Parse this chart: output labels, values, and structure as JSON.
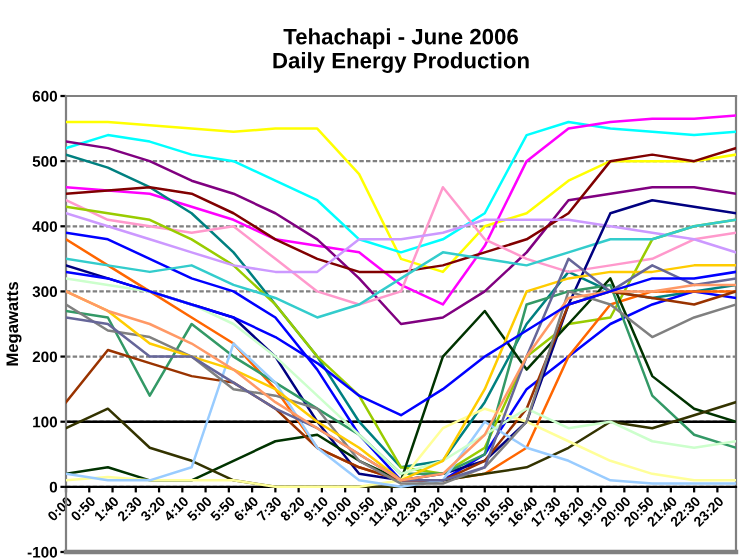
{
  "chart_data": {
    "type": "line",
    "title": "Tehachapi - June 2006\nDaily Energy Production",
    "ylabel": "Megawatts",
    "x": [
      0,
      1.5,
      3,
      4.5,
      6,
      7.5,
      9,
      10.5,
      12,
      13.5,
      15,
      16.5,
      18,
      19.5,
      21,
      22.5,
      24
    ],
    "xlim": [
      0,
      24
    ],
    "ylim": [
      -100,
      600
    ],
    "yticks": [
      -100,
      0,
      100,
      200,
      300,
      400,
      500,
      600
    ],
    "xticks": [
      {
        "value": 0,
        "label": "0:00"
      },
      {
        "value": 0.833,
        "label": "0:50"
      },
      {
        "value": 1.667,
        "label": "1:40"
      },
      {
        "value": 2.5,
        "label": "2:30"
      },
      {
        "value": 3.333,
        "label": "3:20"
      },
      {
        "value": 4.167,
        "label": "4:10"
      },
      {
        "value": 5,
        "label": "5:00"
      },
      {
        "value": 5.833,
        "label": "5:50"
      },
      {
        "value": 6.667,
        "label": "6:40"
      },
      {
        "value": 7.5,
        "label": "7:30"
      },
      {
        "value": 8.333,
        "label": "8:20"
      },
      {
        "value": 9.167,
        "label": "9:10"
      },
      {
        "value": 10,
        "label": "10:00"
      },
      {
        "value": 10.833,
        "label": "10:50"
      },
      {
        "value": 11.667,
        "label": "11:40"
      },
      {
        "value": 12.5,
        "label": "12:30"
      },
      {
        "value": 13.333,
        "label": "13:20"
      },
      {
        "value": 14.167,
        "label": "14:10"
      },
      {
        "value": 15,
        "label": "15:00"
      },
      {
        "value": 15.833,
        "label": "15:50"
      },
      {
        "value": 16.667,
        "label": "16:40"
      },
      {
        "value": 17.5,
        "label": "17:30"
      },
      {
        "value": 18.333,
        "label": "18:20"
      },
      {
        "value": 19.167,
        "label": "19:10"
      },
      {
        "value": 20,
        "label": "20:00"
      },
      {
        "value": 20.833,
        "label": "20:50"
      },
      {
        "value": 21.667,
        "label": "21:40"
      },
      {
        "value": 22.5,
        "label": "22:30"
      },
      {
        "value": 23.333,
        "label": "23:20"
      }
    ],
    "grid": "y",
    "legend": false,
    "marker": "none",
    "line_style": "solid",
    "ref_lines": [
      {
        "axis": "y",
        "value": 100,
        "color": "#000000"
      }
    ],
    "series": [
      {
        "color": "#ffff00",
        "values": [
          560,
          560,
          555,
          550,
          545,
          550,
          550,
          480,
          350,
          330,
          400,
          420,
          470,
          500,
          500,
          500,
          510
        ]
      },
      {
        "color": "#00ffff",
        "values": [
          520,
          540,
          530,
          510,
          500,
          470,
          440,
          380,
          360,
          380,
          420,
          540,
          560,
          550,
          545,
          540,
          545
        ]
      },
      {
        "color": "#ff00ff",
        "values": [
          460,
          455,
          450,
          430,
          410,
          380,
          370,
          360,
          310,
          280,
          370,
          500,
          550,
          560,
          565,
          565,
          570
        ]
      },
      {
        "color": "#800080",
        "values": [
          530,
          520,
          500,
          470,
          450,
          420,
          380,
          320,
          250,
          260,
          300,
          360,
          440,
          450,
          460,
          460,
          450
        ]
      },
      {
        "color": "#008080",
        "values": [
          510,
          490,
          460,
          420,
          360,
          280,
          200,
          100,
          30,
          40,
          130,
          250,
          330,
          300,
          290,
          300,
          310
        ]
      },
      {
        "color": "#800000",
        "values": [
          450,
          455,
          460,
          450,
          420,
          380,
          350,
          330,
          330,
          340,
          360,
          380,
          420,
          500,
          510,
          500,
          520
        ]
      },
      {
        "color": "#ff99cc",
        "values": [
          440,
          410,
          400,
          390,
          400,
          350,
          300,
          280,
          300,
          460,
          380,
          350,
          330,
          340,
          350,
          380,
          390
        ]
      },
      {
        "color": "#99cc00",
        "values": [
          430,
          420,
          410,
          380,
          340,
          280,
          200,
          140,
          30,
          20,
          60,
          200,
          250,
          260,
          380,
          400,
          410
        ]
      },
      {
        "color": "#cc99ff",
        "values": [
          420,
          400,
          380,
          360,
          340,
          330,
          330,
          380,
          380,
          390,
          410,
          410,
          410,
          400,
          390,
          380,
          360
        ]
      },
      {
        "color": "#0000ff",
        "values": [
          390,
          380,
          350,
          320,
          300,
          260,
          180,
          80,
          10,
          10,
          50,
          150,
          200,
          250,
          280,
          300,
          290
        ]
      },
      {
        "color": "#ff6600",
        "values": [
          380,
          340,
          300,
          260,
          220,
          150,
          60,
          30,
          10,
          10,
          20,
          60,
          200,
          280,
          300,
          300,
          300
        ]
      },
      {
        "color": "#33cccc",
        "values": [
          350,
          340,
          330,
          340,
          310,
          290,
          260,
          280,
          320,
          360,
          350,
          340,
          360,
          380,
          380,
          400,
          410
        ]
      },
      {
        "color": "#000080",
        "values": [
          340,
          320,
          300,
          280,
          260,
          200,
          100,
          20,
          10,
          20,
          40,
          100,
          280,
          420,
          440,
          430,
          420
        ]
      },
      {
        "color": "#339966",
        "values": [
          270,
          260,
          140,
          250,
          200,
          160,
          120,
          80,
          20,
          20,
          50,
          280,
          300,
          310,
          140,
          80,
          60
        ]
      },
      {
        "color": "#003300",
        "values": [
          20,
          30,
          10,
          10,
          40,
          70,
          80,
          40,
          10,
          200,
          270,
          180,
          250,
          320,
          170,
          120,
          100
        ]
      },
      {
        "color": "#993300",
        "values": [
          130,
          210,
          190,
          170,
          160,
          120,
          60,
          30,
          10,
          10,
          40,
          120,
          280,
          300,
          290,
          280,
          300
        ]
      },
      {
        "color": "#333300",
        "values": [
          90,
          120,
          60,
          40,
          10,
          0,
          0,
          0,
          0,
          10,
          20,
          30,
          60,
          100,
          90,
          110,
          130
        ]
      },
      {
        "color": "#ffff99",
        "values": [
          10,
          15,
          10,
          10,
          10,
          0,
          0,
          0,
          10,
          90,
          120,
          100,
          70,
          40,
          20,
          10,
          10
        ]
      },
      {
        "color": "#99ccff",
        "values": [
          20,
          10,
          10,
          30,
          220,
          160,
          60,
          10,
          0,
          10,
          100,
          60,
          40,
          10,
          5,
          5,
          5
        ]
      },
      {
        "color": "#ccffcc",
        "values": [
          320,
          310,
          300,
          280,
          250,
          200,
          140,
          80,
          20,
          40,
          80,
          120,
          90,
          100,
          70,
          60,
          70
        ]
      },
      {
        "color": "#808080",
        "values": [
          280,
          240,
          230,
          200,
          150,
          140,
          120,
          40,
          5,
          5,
          30,
          100,
          300,
          280,
          230,
          260,
          280
        ]
      },
      {
        "color": "#ffcc00",
        "values": [
          300,
          270,
          220,
          200,
          180,
          150,
          100,
          60,
          10,
          40,
          150,
          300,
          320,
          330,
          330,
          340,
          340
        ]
      },
      {
        "color": "#666699",
        "values": [
          260,
          250,
          200,
          200,
          160,
          120,
          90,
          50,
          10,
          10,
          30,
          200,
          350,
          300,
          340,
          310,
          320
        ]
      },
      {
        "color": "#ff9966",
        "values": [
          300,
          270,
          250,
          220,
          180,
          130,
          90,
          50,
          10,
          20,
          80,
          200,
          290,
          300,
          300,
          310,
          310
        ]
      },
      {
        "color": "#0000ff",
        "values": [
          330,
          320,
          300,
          280,
          260,
          230,
          190,
          140,
          110,
          150,
          200,
          240,
          280,
          300,
          320,
          320,
          330
        ]
      }
    ]
  }
}
